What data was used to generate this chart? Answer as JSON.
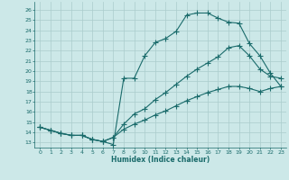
{
  "xlabel": "Humidex (Indice chaleur)",
  "bg_color": "#cce8e8",
  "line_color": "#1a6b6b",
  "grid_color": "#aacccc",
  "xlim": [
    -0.5,
    23.5
  ],
  "ylim": [
    12.5,
    26.8
  ],
  "xticks": [
    0,
    1,
    2,
    3,
    4,
    5,
    6,
    7,
    8,
    9,
    10,
    11,
    12,
    13,
    14,
    15,
    16,
    17,
    18,
    19,
    20,
    21,
    22,
    23
  ],
  "yticks": [
    13,
    14,
    15,
    16,
    17,
    18,
    19,
    20,
    21,
    22,
    23,
    24,
    25,
    26
  ],
  "line1_x": [
    0,
    1,
    2,
    3,
    4,
    5,
    6,
    7,
    8,
    9,
    10,
    11,
    12,
    13,
    14,
    15,
    16,
    17,
    18,
    19,
    20,
    21,
    22,
    23
  ],
  "line1_y": [
    14.5,
    14.2,
    13.9,
    13.7,
    13.7,
    13.3,
    13.1,
    12.8,
    19.3,
    19.3,
    21.5,
    22.8,
    23.2,
    23.9,
    25.5,
    25.7,
    25.7,
    25.2,
    24.8,
    24.7,
    22.7,
    21.5,
    19.8,
    18.5
  ],
  "line2_x": [
    0,
    1,
    2,
    3,
    4,
    5,
    6,
    7,
    8,
    9,
    10,
    11,
    12,
    13,
    14,
    15,
    16,
    17,
    18,
    19,
    20,
    21,
    22,
    23
  ],
  "line2_y": [
    14.5,
    14.2,
    13.9,
    13.7,
    13.7,
    13.3,
    13.1,
    13.5,
    14.8,
    15.8,
    16.3,
    17.2,
    17.9,
    18.7,
    19.5,
    20.2,
    20.8,
    21.4,
    22.3,
    22.5,
    21.5,
    20.2,
    19.5,
    19.3
  ],
  "line3_x": [
    0,
    1,
    2,
    3,
    4,
    5,
    6,
    7,
    8,
    9,
    10,
    11,
    12,
    13,
    14,
    15,
    16,
    17,
    18,
    19,
    20,
    21,
    22,
    23
  ],
  "line3_y": [
    14.5,
    14.2,
    13.9,
    13.7,
    13.7,
    13.3,
    13.1,
    13.5,
    14.3,
    14.8,
    15.2,
    15.7,
    16.1,
    16.6,
    17.1,
    17.5,
    17.9,
    18.2,
    18.5,
    18.5,
    18.3,
    18.0,
    18.3,
    18.5
  ]
}
